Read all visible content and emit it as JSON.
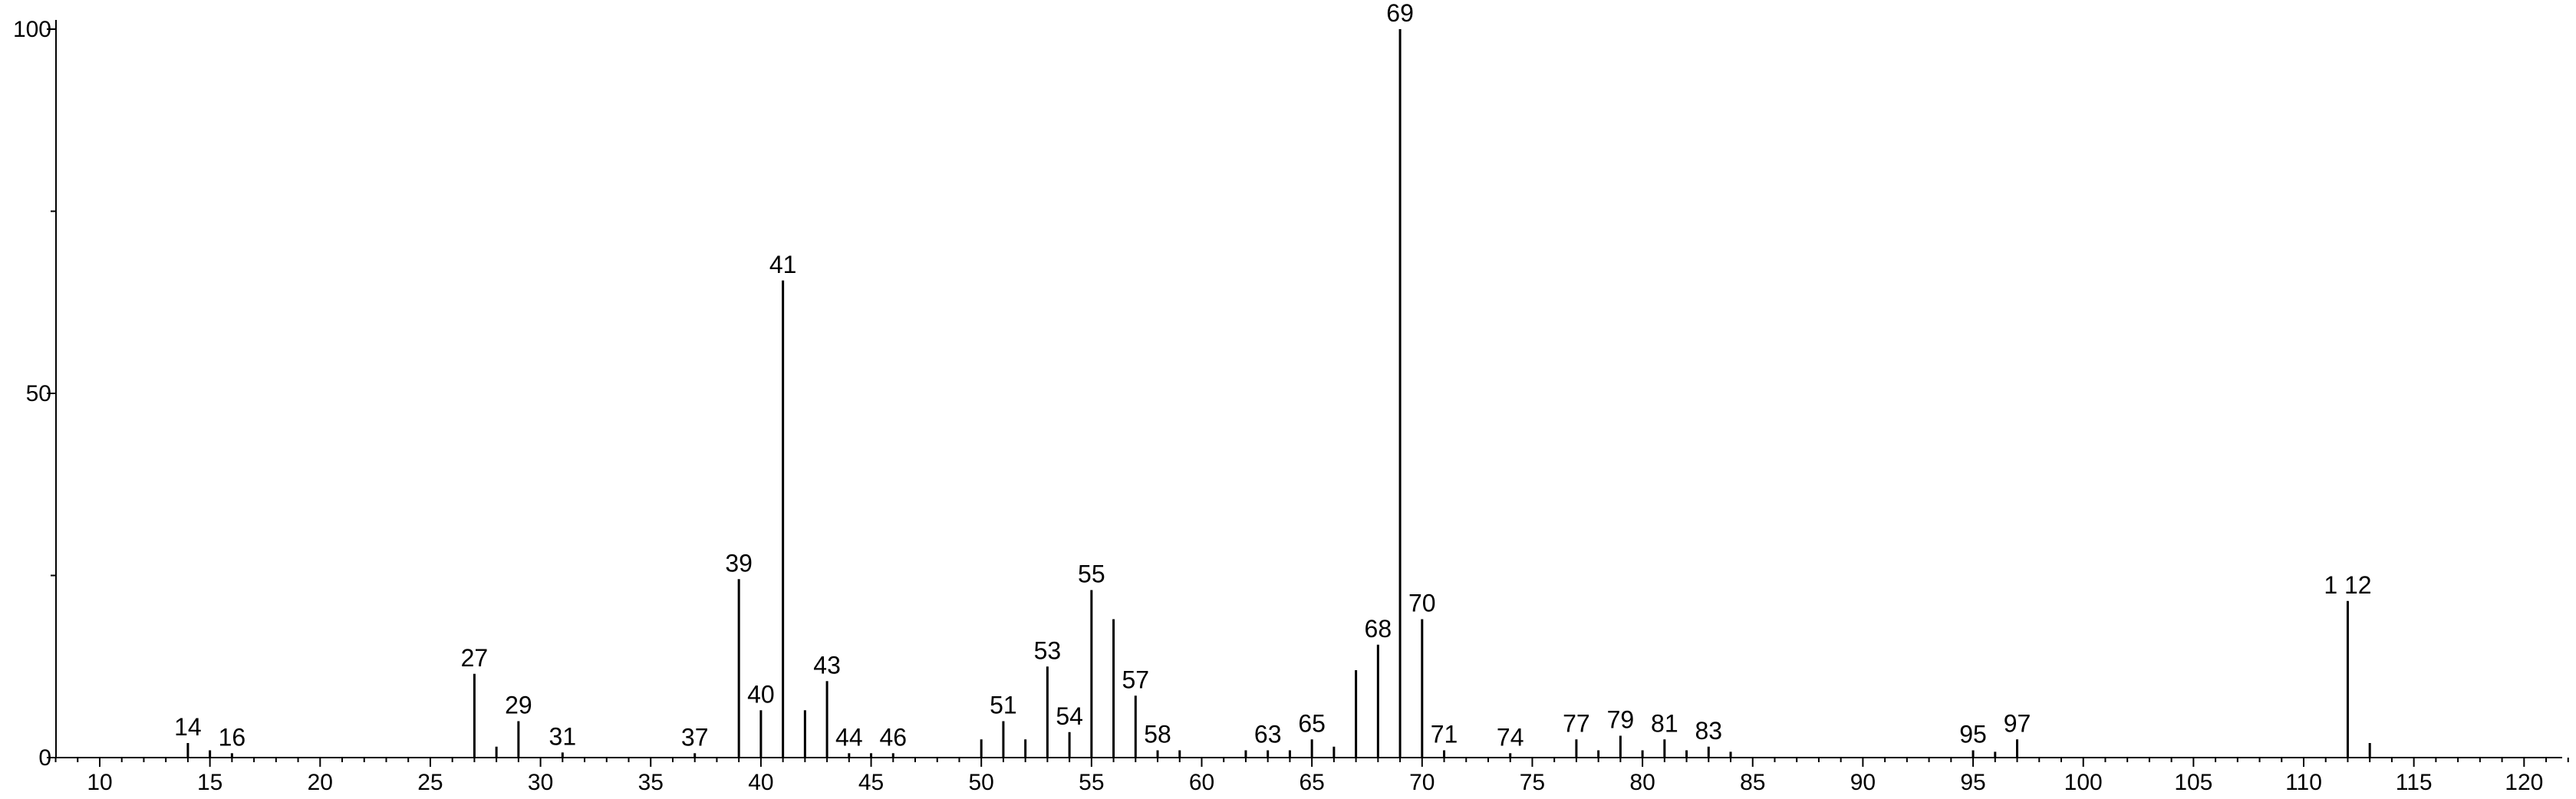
{
  "chart_data": {
    "type": "bar",
    "title": "",
    "xlabel": "",
    "ylabel": "",
    "xlim": [
      8,
      122
    ],
    "ylim": [
      0,
      100
    ],
    "x_ticks": [
      10,
      15,
      20,
      25,
      30,
      35,
      40,
      45,
      50,
      55,
      60,
      65,
      70,
      75,
      80,
      85,
      90,
      95,
      100,
      105,
      110,
      115,
      120
    ],
    "y_ticks": [
      0,
      50,
      100
    ],
    "grid": false,
    "color": "#000000",
    "peaks": [
      {
        "x": 14,
        "y": 2.0,
        "label": "14"
      },
      {
        "x": 15,
        "y": 1.0,
        "label": ""
      },
      {
        "x": 16,
        "y": 0.6,
        "label": "16"
      },
      {
        "x": 27,
        "y": 11.5,
        "label": "27"
      },
      {
        "x": 28,
        "y": 1.5,
        "label": ""
      },
      {
        "x": 29,
        "y": 5.0,
        "label": "29"
      },
      {
        "x": 31,
        "y": 0.7,
        "label": "31"
      },
      {
        "x": 37,
        "y": 0.6,
        "label": "37"
      },
      {
        "x": 39,
        "y": 24.5,
        "label": "39"
      },
      {
        "x": 40,
        "y": 6.5,
        "label": "40"
      },
      {
        "x": 41,
        "y": 65.5,
        "label": "41"
      },
      {
        "x": 42,
        "y": 6.5,
        "label": ""
      },
      {
        "x": 43,
        "y": 10.5,
        "label": "43"
      },
      {
        "x": 44,
        "y": 0.6,
        "label": "44"
      },
      {
        "x": 45,
        "y": 0.6,
        "label": ""
      },
      {
        "x": 46,
        "y": 0.6,
        "label": "46"
      },
      {
        "x": 50,
        "y": 2.5,
        "label": ""
      },
      {
        "x": 51,
        "y": 5.0,
        "label": "51"
      },
      {
        "x": 52,
        "y": 2.5,
        "label": ""
      },
      {
        "x": 53,
        "y": 12.5,
        "label": "53"
      },
      {
        "x": 54,
        "y": 3.5,
        "label": "54"
      },
      {
        "x": 55,
        "y": 23.0,
        "label": "55"
      },
      {
        "x": 56,
        "y": 19.0,
        "label": ""
      },
      {
        "x": 57,
        "y": 8.5,
        "label": "57"
      },
      {
        "x": 58,
        "y": 1.0,
        "label": "58"
      },
      {
        "x": 59,
        "y": 1.0,
        "label": ""
      },
      {
        "x": 62,
        "y": 1.0,
        "label": ""
      },
      {
        "x": 63,
        "y": 1.0,
        "label": "63"
      },
      {
        "x": 64,
        "y": 1.0,
        "label": ""
      },
      {
        "x": 65,
        "y": 2.5,
        "label": "65"
      },
      {
        "x": 66,
        "y": 1.5,
        "label": ""
      },
      {
        "x": 67,
        "y": 12.0,
        "label": ""
      },
      {
        "x": 68,
        "y": 15.5,
        "label": "68"
      },
      {
        "x": 69,
        "y": 100.0,
        "label": "69"
      },
      {
        "x": 70,
        "y": 19.0,
        "label": "70"
      },
      {
        "x": 71,
        "y": 1.0,
        "label": "71"
      },
      {
        "x": 74,
        "y": 0.6,
        "label": "74"
      },
      {
        "x": 77,
        "y": 2.5,
        "label": "77"
      },
      {
        "x": 78,
        "y": 1.0,
        "label": ""
      },
      {
        "x": 79,
        "y": 3.0,
        "label": "79"
      },
      {
        "x": 80,
        "y": 1.0,
        "label": ""
      },
      {
        "x": 81,
        "y": 2.5,
        "label": "81"
      },
      {
        "x": 82,
        "y": 1.0,
        "label": ""
      },
      {
        "x": 83,
        "y": 1.5,
        "label": "83"
      },
      {
        "x": 84,
        "y": 0.8,
        "label": ""
      },
      {
        "x": 95,
        "y": 1.0,
        "label": "95"
      },
      {
        "x": 96,
        "y": 0.8,
        "label": ""
      },
      {
        "x": 97,
        "y": 2.5,
        "label": "97"
      },
      {
        "x": 112,
        "y": 21.5,
        "label": "1 12"
      },
      {
        "x": 113,
        "y": 2.0,
        "label": ""
      }
    ]
  }
}
